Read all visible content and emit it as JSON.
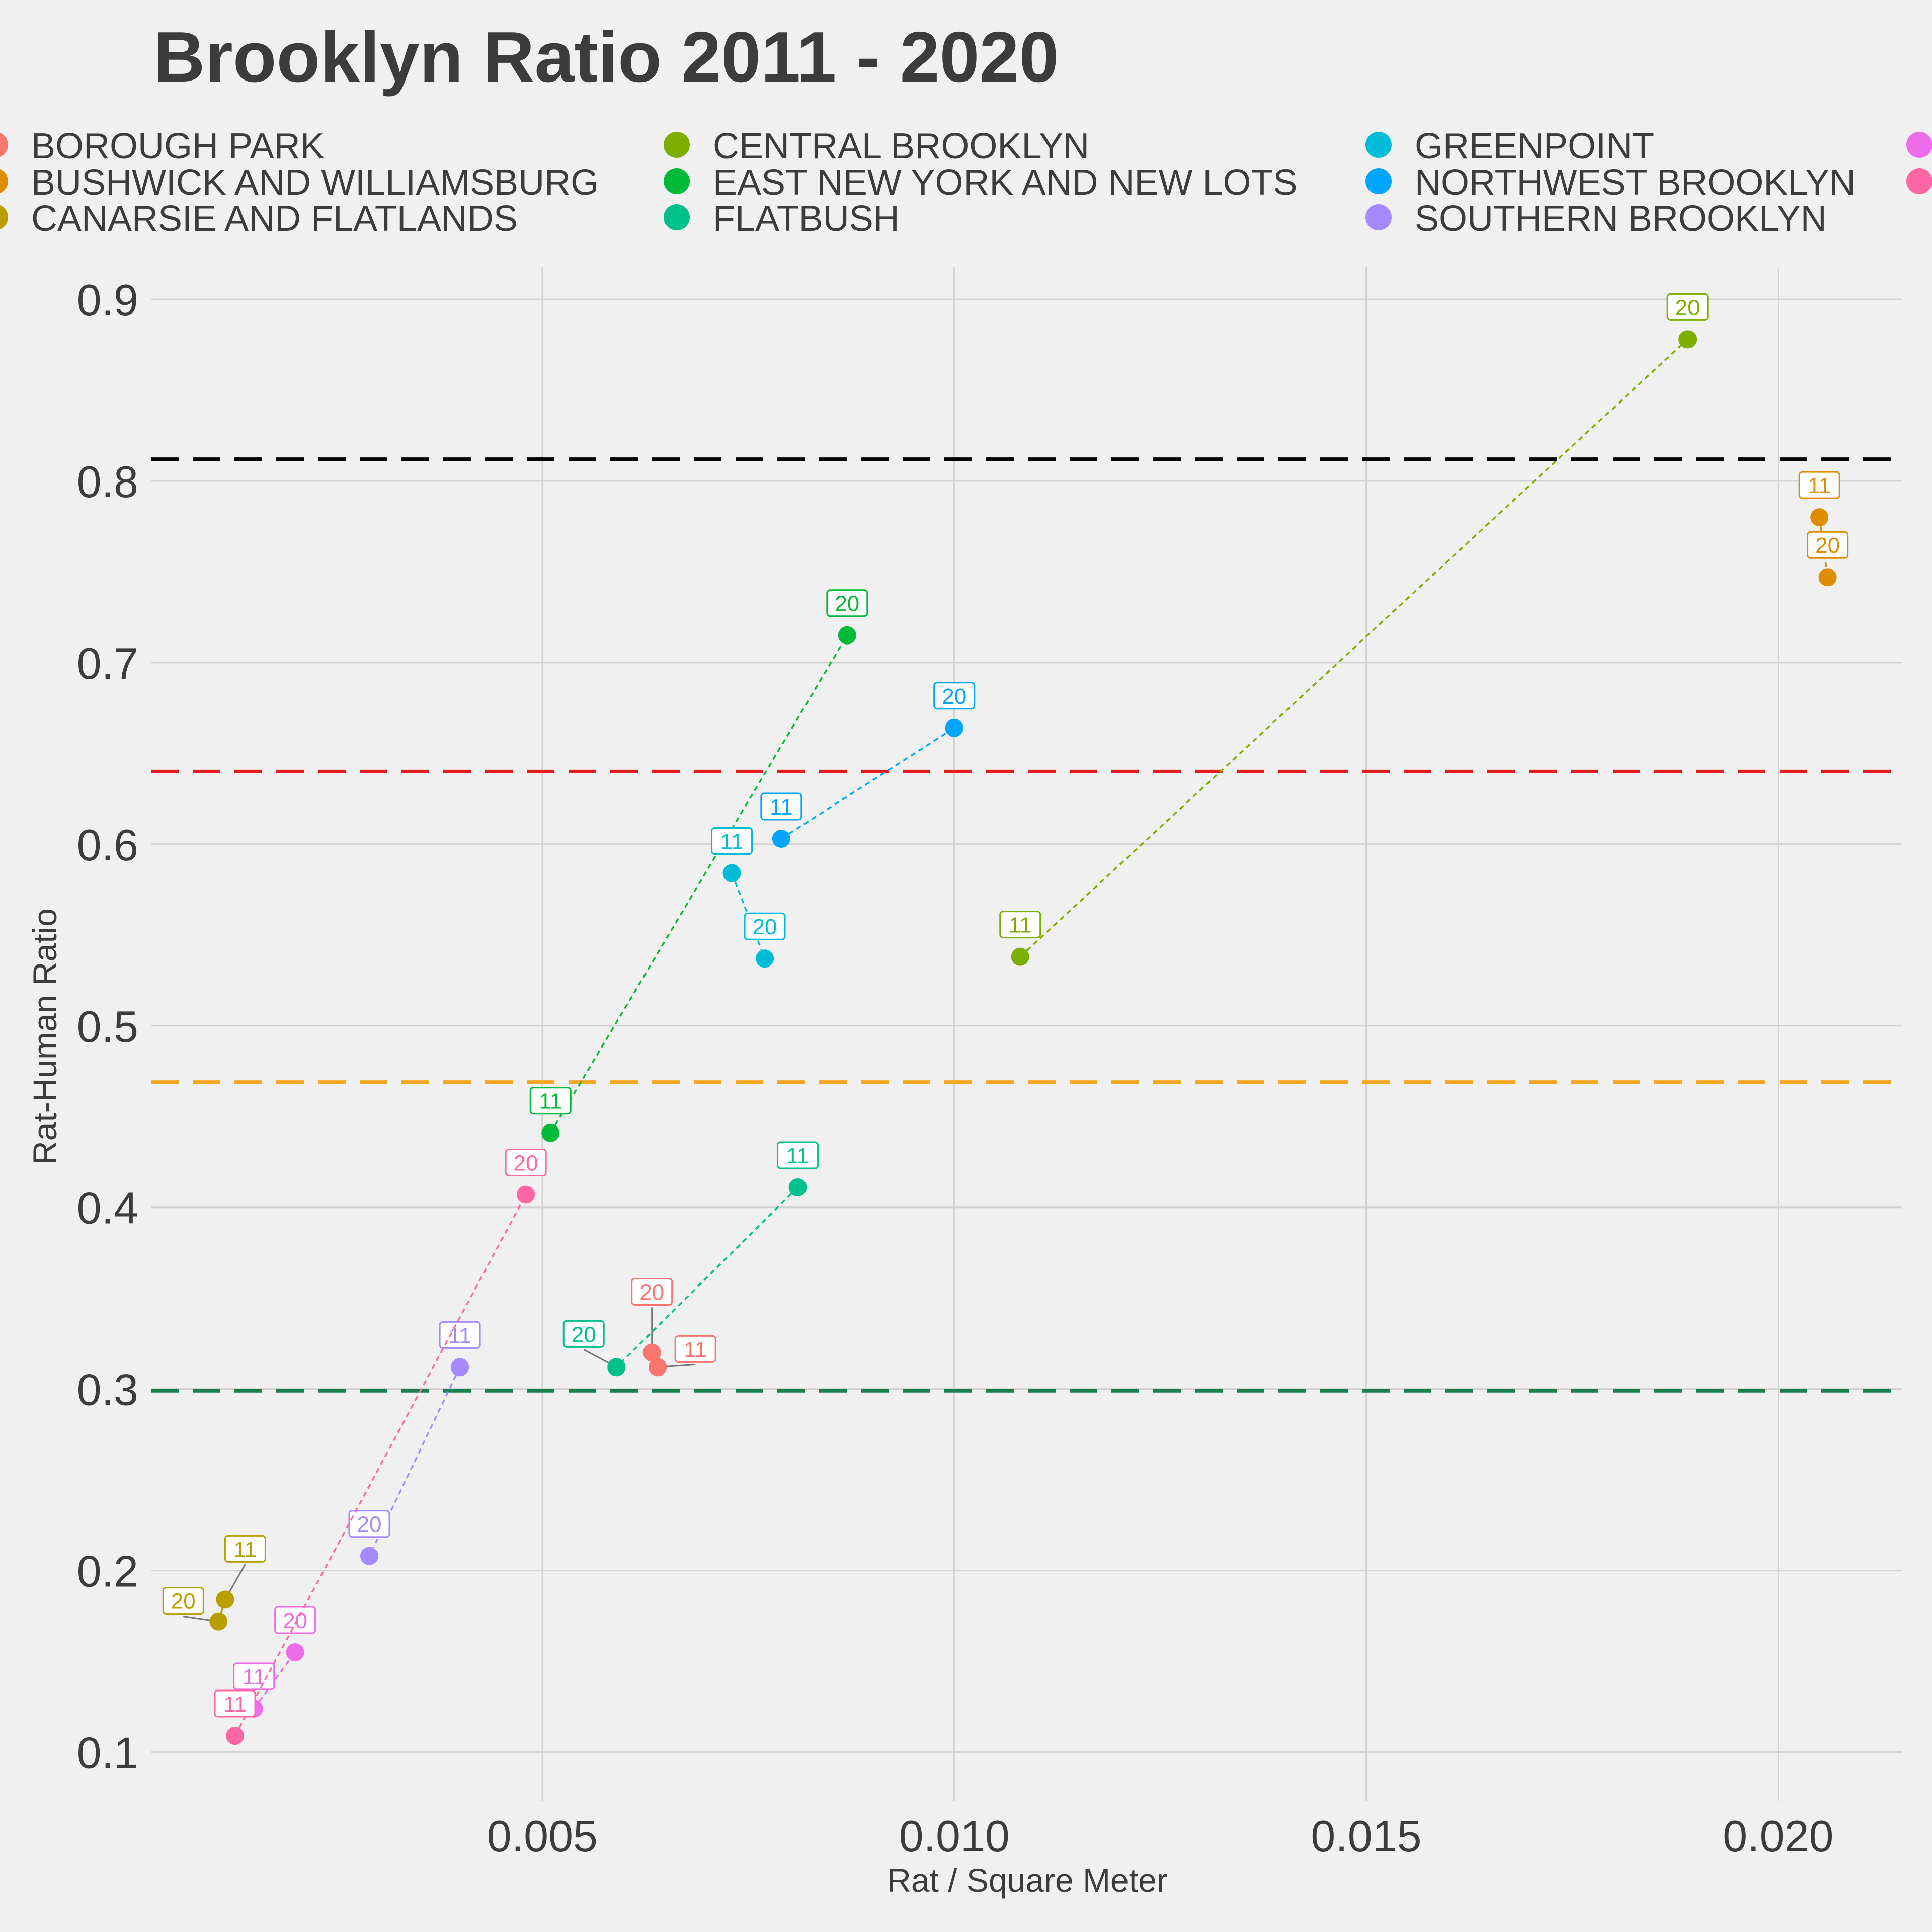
{
  "chart_data": {
    "type": "scatter",
    "title": "Brooklyn Ratio 2011 - 2020",
    "xlabel": "Rat / Square Meter",
    "ylabel": "Rat-Human Ratio",
    "xlim": [
      0.00025,
      0.0215
    ],
    "ylim": [
      0.073,
      0.918
    ],
    "xticks": [
      "0.005",
      "0.010",
      "0.015",
      "0.020"
    ],
    "xtick_values": [
      0.005,
      0.01,
      0.015,
      0.02
    ],
    "yticks": [
      "0.1",
      "0.2",
      "0.3",
      "0.4",
      "0.5",
      "0.6",
      "0.7",
      "0.8",
      "0.9"
    ],
    "ytick_values": [
      0.1,
      0.2,
      0.3,
      0.4,
      0.5,
      0.6,
      0.7,
      0.8,
      0.9
    ],
    "grid": true,
    "legend_position": "top",
    "legend": [
      {
        "name": "BOROUGH PARK",
        "color": "#F8766D"
      },
      {
        "name": "BUSHWICK AND WILLIAMSBURG",
        "color": "#DE8C00"
      },
      {
        "name": "CANARSIE AND FLATLANDS",
        "color": "#B79F00"
      },
      {
        "name": "CENTRAL BROOKLYN",
        "color": "#7CAE00"
      },
      {
        "name": "EAST NEW YORK AND NEW LOTS",
        "color": "#00BA38"
      },
      {
        "name": "FLATBUSH",
        "color": "#00C08B"
      },
      {
        "name": "GREENPOINT",
        "color": "#00BCD8"
      },
      {
        "name": "NORTHWEST BROOKLYN",
        "color": "#00A5FF"
      },
      {
        "name": "SOUTHERN BROOKLYN",
        "color": "#A58AFF"
      },
      {
        "name": "",
        "color": "#EE6CEA"
      },
      {
        "name": "",
        "color": "#FF67A4"
      }
    ],
    "series": [
      {
        "name": "BOROUGH PARK",
        "color": "#F8766D",
        "points": [
          {
            "label": "11",
            "x": 0.0064,
            "y": 0.312
          },
          {
            "label": "20",
            "x": 0.00633,
            "y": 0.32
          }
        ]
      },
      {
        "name": "BUSHWICK AND WILLIAMSBURG",
        "color": "#DE8C00",
        "points": [
          {
            "label": "11",
            "x": 0.0205,
            "y": 0.78
          },
          {
            "label": "20",
            "x": 0.0206,
            "y": 0.747
          }
        ]
      },
      {
        "name": "CANARSIE AND FLATLANDS",
        "color": "#B79F00",
        "points": [
          {
            "label": "11",
            "x": 0.00115,
            "y": 0.184
          },
          {
            "label": "20",
            "x": 0.00107,
            "y": 0.172
          }
        ]
      },
      {
        "name": "CENTRAL BROOKLYN",
        "color": "#7CAE00",
        "points": [
          {
            "label": "11",
            "x": 0.0108,
            "y": 0.538
          },
          {
            "label": "20",
            "x": 0.0189,
            "y": 0.878
          }
        ]
      },
      {
        "name": "EAST NEW YORK AND NEW LOTS",
        "color": "#00BA38",
        "points": [
          {
            "label": "11",
            "x": 0.0051,
            "y": 0.441
          },
          {
            "label": "20",
            "x": 0.0087,
            "y": 0.715
          }
        ]
      },
      {
        "name": "FLATBUSH",
        "color": "#00C08B",
        "points": [
          {
            "label": "11",
            "x": 0.0081,
            "y": 0.411
          },
          {
            "label": "20",
            "x": 0.0059,
            "y": 0.312
          }
        ]
      },
      {
        "name": "GREENPOINT",
        "color": "#00BCD8",
        "points": [
          {
            "label": "11",
            "x": 0.0073,
            "y": 0.584
          },
          {
            "label": "20",
            "x": 0.0077,
            "y": 0.537
          }
        ]
      },
      {
        "name": "NORTHWEST BROOKLYN",
        "color": "#00A5FF",
        "points": [
          {
            "label": "11",
            "x": 0.0079,
            "y": 0.603
          },
          {
            "label": "20",
            "x": 0.01,
            "y": 0.664
          }
        ]
      },
      {
        "name": "SOUTHERN BROOKLYN",
        "color": "#A58AFF",
        "points": [
          {
            "label": "11",
            "x": 0.004,
            "y": 0.312
          },
          {
            "label": "20",
            "x": 0.0029,
            "y": 0.208
          }
        ]
      },
      {
        "name": "",
        "color": "#EE6CEA",
        "points": [
          {
            "label": "11",
            "x": 0.0015,
            "y": 0.124
          },
          {
            "label": "20",
            "x": 0.002,
            "y": 0.155
          }
        ]
      },
      {
        "name": "",
        "color": "#FF67A4",
        "points": [
          {
            "label": "11",
            "x": 0.00127,
            "y": 0.109
          },
          {
            "label": "20",
            "x": 0.0048,
            "y": 0.407
          }
        ]
      }
    ],
    "reference_lines": [
      {
        "y": 0.812,
        "color": "#000000"
      },
      {
        "y": 0.64,
        "color": "#E41A1C"
      },
      {
        "y": 0.469,
        "color": "#F5A623"
      },
      {
        "y": 0.299,
        "color": "#1B7F4F"
      }
    ]
  }
}
